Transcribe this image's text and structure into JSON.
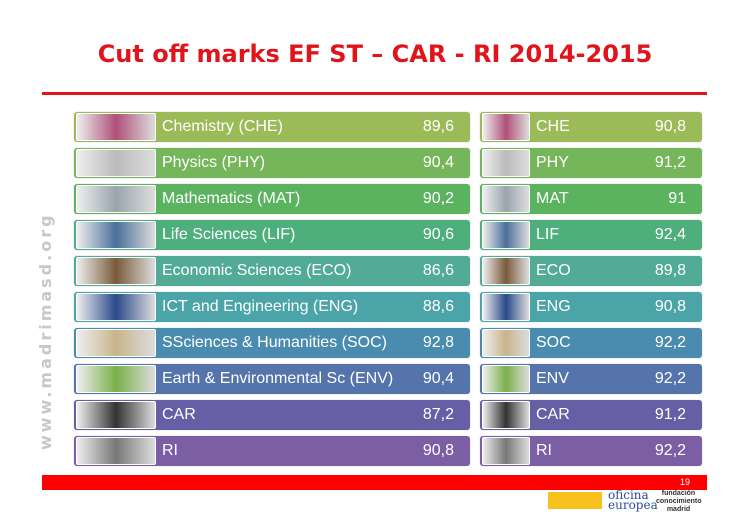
{
  "title": "Cut off marks EF ST – CAR - RI 2014-2015",
  "watermark": "www.madrimasd.org",
  "rows": [
    {
      "label": "Chemistry (CHE)",
      "code": "CHE",
      "ef": "89,6",
      "right": "90,8",
      "color": "#9bbb59"
    },
    {
      "label": "Physics (PHY)",
      "code": "PHY",
      "ef": "90,4",
      "right": "91,2",
      "color": "#76b65a"
    },
    {
      "label": "Mathematics (MAT)",
      "code": "MAT",
      "ef": "90,2",
      "right": "91",
      "color": "#5bb35f"
    },
    {
      "label": "Life Sciences (LIF)",
      "code": "LIF",
      "ef": "90,6",
      "right": "92,4",
      "color": "#4eae7c"
    },
    {
      "label": "Economic Sciences (ECO)",
      "code": "ECO",
      "ef": "86,6",
      "right": "89,8",
      "color": "#52ab97"
    },
    {
      "label": "ICT and Engineering (ENG)",
      "code": "ENG",
      "ef": "88,6",
      "right": "90,8",
      "color": "#4ba4a8"
    },
    {
      "label": "SSciences & Humanities (SOC)",
      "code": "SOC",
      "ef": "92,8",
      "right": "92,2",
      "color": "#4a8caf"
    },
    {
      "label": "Earth & Environmental Sc (ENV)",
      "code": "ENV",
      "ef": "90,4",
      "right": "92,2",
      "color": "#5474ab"
    },
    {
      "label": "CAR",
      "code": "CAR",
      "ef": "87,2",
      "right": "91,2",
      "color": "#675fa5"
    },
    {
      "label": "RI",
      "code": "RI",
      "ef": "90,8",
      "right": "92,2",
      "color": "#7c5ea4"
    }
  ],
  "thumbs": [
    "#b0507a",
    "#bbbbbb",
    "#9aa4ad",
    "#4a6f9a",
    "#7a5a3a",
    "#2a4a8a",
    "#c9b48a",
    "#7ab04a",
    "#333333",
    "#777777"
  ],
  "footer": {
    "page": "19",
    "logo_oficina": "oficina europea",
    "logo_fundacion": "fundación conocimiento madrid"
  }
}
